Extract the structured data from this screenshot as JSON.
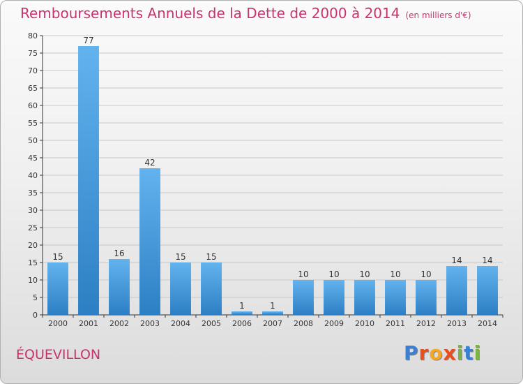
{
  "title": "Remboursements Annuels de la Dette de 2000 à 2014",
  "unit": "(en milliers d'€)",
  "commune": "ÉQUEVILLON",
  "logo": {
    "text": "Proxiti",
    "colors": [
      "#3b7fd3",
      "#e94e1b",
      "#f5a623",
      "#e94e1b",
      "#7cb342",
      "#3b7fd3",
      "#7cb342"
    ]
  },
  "colors": {
    "title": "#c8336e",
    "bar_top": "#62b3ee",
    "bar_bottom": "#2c7fc4",
    "axis": "#333333",
    "grid": "#c8c8c8"
  },
  "chart_data": {
    "type": "bar",
    "title": "Remboursements Annuels de la Dette de 2000 à 2014",
    "ylabel": "(en milliers d'€)",
    "categories": [
      "2000",
      "2001",
      "2002",
      "2003",
      "2004",
      "2005",
      "2006",
      "2007",
      "2008",
      "2009",
      "2010",
      "2011",
      "2012",
      "2013",
      "2014"
    ],
    "values": [
      15,
      77,
      16,
      42,
      15,
      15,
      1,
      1,
      10,
      10,
      10,
      10,
      10,
      14,
      14
    ],
    "ylim": [
      0,
      80
    ],
    "yticks": [
      0,
      5,
      10,
      15,
      20,
      25,
      30,
      35,
      40,
      45,
      50,
      55,
      60,
      65,
      70,
      75,
      80
    ],
    "grid": true
  }
}
